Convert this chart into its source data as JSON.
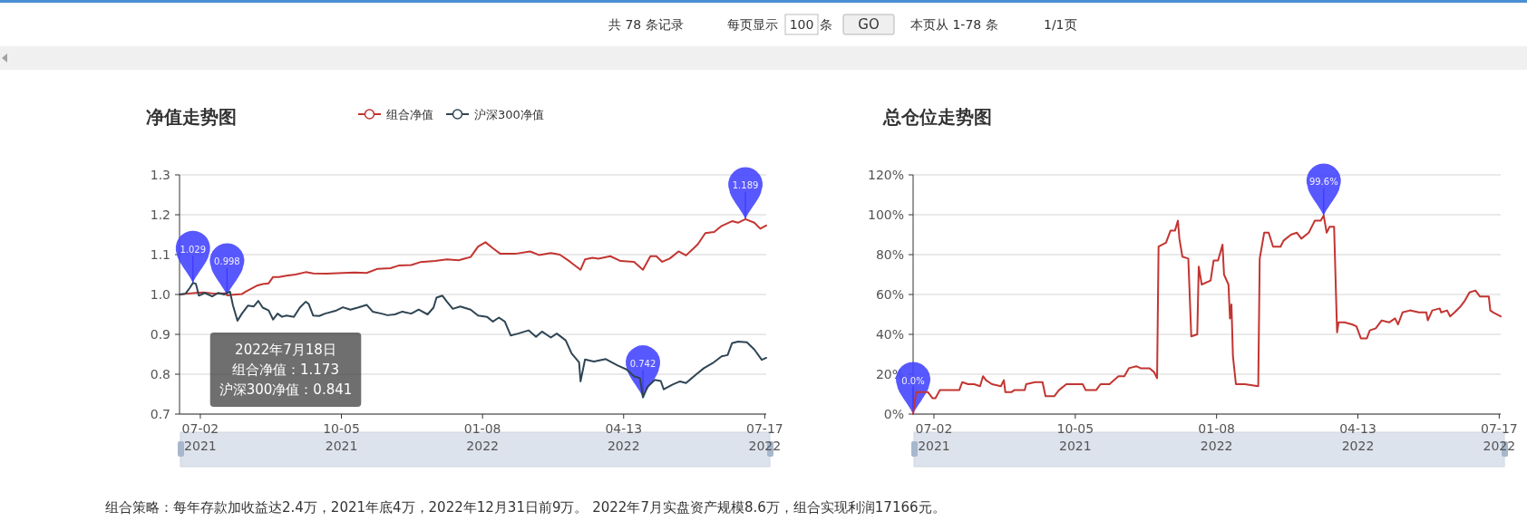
{
  "chart_data": [
    {
      "type": "other",
      "annotations": [
        "共 78 条记录",
        "每页显示",
        "100",
        "条",
        "GO",
        "本页从 1-78 条",
        "1/1页"
      ]
    },
    {
      "type": "line",
      "title": "净值走势图",
      "legend": "top",
      "grid": "y",
      "xlim": [
        "2021-06-18",
        "2022-07-18"
      ],
      "xticks": [
        {
          "value": "2021-07-02",
          "label": "07-02\n2021"
        },
        {
          "value": "2021-10-05",
          "label": "10-05\n2021"
        },
        {
          "value": "2022-01-08",
          "label": "01-08\n2022"
        },
        {
          "value": "2022-04-13",
          "label": "04-13\n2022"
        },
        {
          "value": "2022-07-17",
          "label": "07-17\n2022"
        }
      ],
      "ylim": [
        0.7,
        1.3
      ],
      "yticks": [
        0.7,
        0.8,
        0.9,
        {
          "value": 1,
          "label": "1.0"
        },
        1.1,
        1.2,
        1.3
      ],
      "series": [
        {
          "name": "组合净值",
          "color": "#c23531",
          "x": [
            "2021-06-18",
            "2021-06-23",
            "2021-06-29",
            "2021-07-04",
            "2021-07-12",
            "2021-07-19",
            "2021-07-20",
            "2021-07-26",
            "2021-07-30",
            "2021-08-01",
            "2021-08-05",
            "2021-08-09",
            "2021-08-13",
            "2021-08-17",
            "2021-08-20",
            "2021-08-24",
            "2021-08-29",
            "2021-09-04",
            "2021-09-11",
            "2021-09-16",
            "2021-09-25",
            "2021-10-06",
            "2021-10-14",
            "2021-10-22",
            "2021-10-29",
            "2021-11-07",
            "2021-11-13",
            "2021-11-21",
            "2021-11-27",
            "2021-12-07",
            "2021-12-15",
            "2021-12-23",
            "2021-12-31",
            "2022-01-05",
            "2022-01-10",
            "2022-01-15",
            "2022-01-20",
            "2022-01-30",
            "2022-02-09",
            "2022-02-15",
            "2022-02-23",
            "2022-03-01",
            "2022-03-08",
            "2022-03-15",
            "2022-03-18",
            "2022-03-23",
            "2022-03-27",
            "2022-04-04",
            "2022-04-11",
            "2022-04-20",
            "2022-04-26",
            "2022-05-01",
            "2022-05-05",
            "2022-05-09",
            "2022-05-14",
            "2022-05-20",
            "2022-05-25",
            "2022-06-02",
            "2022-06-07",
            "2022-06-13",
            "2022-06-18",
            "2022-06-25",
            "2022-06-29",
            "2022-07-04",
            "2022-07-10",
            "2022-07-14",
            "2022-07-18"
          ],
          "values": [
            1.0,
            1.002,
            1.004,
            1.005,
            1.002,
            1.003,
            0.998,
            1.0,
            1.001,
            1.006,
            1.014,
            1.022,
            1.026,
            1.028,
            1.044,
            1.044,
            1.047,
            1.05,
            1.056,
            1.053,
            1.052,
            1.054,
            1.055,
            1.054,
            1.064,
            1.066,
            1.073,
            1.074,
            1.081,
            1.084,
            1.088,
            1.086,
            1.094,
            1.12,
            1.131,
            1.116,
            1.102,
            1.102,
            1.108,
            1.099,
            1.104,
            1.1,
            1.082,
            1.062,
            1.088,
            1.092,
            1.09,
            1.096,
            1.084,
            1.082,
            1.062,
            1.096,
            1.096,
            1.082,
            1.09,
            1.108,
            1.098,
            1.126,
            1.154,
            1.157,
            1.172,
            1.184,
            1.18,
            1.189,
            1.18,
            1.165,
            1.173
          ]
        },
        {
          "name": "沪深300净值",
          "color": "#2f4554",
          "x": [
            "2021-06-18",
            "2021-06-22",
            "2021-06-25",
            "2021-06-27",
            "2021-06-29",
            "2021-07-01",
            "2021-07-05",
            "2021-07-10",
            "2021-07-14",
            "2021-07-18",
            "2021-07-22",
            "2021-07-24",
            "2021-07-27",
            "2021-07-30",
            "2021-08-03",
            "2021-08-07",
            "2021-08-10",
            "2021-08-13",
            "2021-08-17",
            "2021-08-20",
            "2021-08-23",
            "2021-08-26",
            "2021-08-29",
            "2021-09-03",
            "2021-09-07",
            "2021-09-11",
            "2021-09-13",
            "2021-09-16",
            "2021-09-20",
            "2021-09-24",
            "2021-10-01",
            "2021-10-06",
            "2021-10-11",
            "2021-10-16",
            "2021-10-22",
            "2021-10-26",
            "2021-11-01",
            "2021-11-05",
            "2021-11-10",
            "2021-11-15",
            "2021-11-21",
            "2021-11-26",
            "2021-12-02",
            "2021-12-06",
            "2021-12-08",
            "2021-12-12",
            "2021-12-15",
            "2021-12-19",
            "2021-12-24",
            "2021-12-31",
            "2022-01-05",
            "2022-01-11",
            "2022-01-15",
            "2022-01-19",
            "2022-01-23",
            "2022-01-27",
            "2022-02-01",
            "2022-02-08",
            "2022-02-13",
            "2022-02-17",
            "2022-02-23",
            "2022-02-27",
            "2022-03-05",
            "2022-03-09",
            "2022-03-14",
            "2022-03-15",
            "2022-03-18",
            "2022-03-24",
            "2022-04-01",
            "2022-04-09",
            "2022-04-15",
            "2022-04-20",
            "2022-04-24",
            "2022-04-26",
            "2022-04-29",
            "2022-05-04",
            "2022-05-08",
            "2022-05-10",
            "2022-05-16",
            "2022-05-21",
            "2022-05-25",
            "2022-06-01",
            "2022-06-06",
            "2022-06-12",
            "2022-06-18",
            "2022-06-22",
            "2022-06-25",
            "2022-06-29",
            "2022-07-05",
            "2022-07-10",
            "2022-07-15",
            "2022-07-18"
          ],
          "values": [
            1.0,
            1.002,
            1.017,
            1.029,
            1.027,
            0.997,
            1.004,
            0.995,
            1.004,
            1.0,
            1.007,
            0.972,
            0.934,
            0.952,
            0.972,
            0.97,
            0.984,
            0.967,
            0.96,
            0.937,
            0.952,
            0.944,
            0.947,
            0.944,
            0.967,
            0.982,
            0.976,
            0.947,
            0.946,
            0.952,
            0.959,
            0.968,
            0.962,
            0.967,
            0.974,
            0.957,
            0.952,
            0.948,
            0.95,
            0.957,
            0.952,
            0.962,
            0.95,
            0.967,
            0.992,
            0.997,
            0.982,
            0.964,
            0.97,
            0.962,
            0.947,
            0.944,
            0.932,
            0.942,
            0.932,
            0.897,
            0.902,
            0.91,
            0.894,
            0.907,
            0.892,
            0.902,
            0.885,
            0.852,
            0.83,
            0.782,
            0.837,
            0.832,
            0.838,
            0.822,
            0.812,
            0.795,
            0.79,
            0.742,
            0.768,
            0.786,
            0.783,
            0.762,
            0.774,
            0.782,
            0.778,
            0.8,
            0.815,
            0.828,
            0.845,
            0.848,
            0.878,
            0.882,
            0.88,
            0.862,
            0.836,
            0.841
          ]
        }
      ],
      "annotations": [
        {
          "text": "1.029",
          "x": "2021-06-27",
          "y": 1.029
        },
        {
          "text": "0.998",
          "x": "2021-07-20",
          "y": 0.998
        },
        {
          "text": "1.189",
          "x": "2022-07-04",
          "y": 1.189
        },
        {
          "text": "0.742",
          "x": "2022-04-26",
          "y": 0.742
        },
        "2022年7月18日",
        "组合净值：1.173",
        "沪深300净值：0.841"
      ]
    },
    {
      "type": "line",
      "title": "总仓位走势图",
      "grid": "y",
      "xlim": [
        "2021-06-18",
        "2022-07-18"
      ],
      "xticks": [
        {
          "value": "2021-07-02",
          "label": "07-02\n2021"
        },
        {
          "value": "2021-10-05",
          "label": "10-05\n2021"
        },
        {
          "value": "2022-01-08",
          "label": "01-08\n2022"
        },
        {
          "value": "2022-04-13",
          "label": "04-13\n2022"
        },
        {
          "value": "2022-07-17",
          "label": "07-17\n2022"
        }
      ],
      "ylim": [
        0,
        120
      ],
      "yticks": [
        {
          "value": 0,
          "label": "0%"
        },
        {
          "value": 20,
          "label": "20%"
        },
        {
          "value": 40,
          "label": "40%"
        },
        {
          "value": 60,
          "label": "60%"
        },
        {
          "value": 80,
          "label": "80%"
        },
        {
          "value": 100,
          "label": "100%"
        },
        {
          "value": 120,
          "label": "120%"
        }
      ],
      "series": [
        {
          "color": "#c23531",
          "x": [
            "2021-06-18",
            "2021-06-20",
            "2021-06-28",
            "2021-07-01",
            "2021-07-03",
            "2021-07-06",
            "2021-07-19",
            "2021-07-21",
            "2021-07-25",
            "2021-07-29",
            "2021-08-02",
            "2021-08-04",
            "2021-08-06",
            "2021-08-10",
            "2021-08-16",
            "2021-08-18",
            "2021-08-19",
            "2021-08-23",
            "2021-08-25",
            "2021-09-01",
            "2021-09-02",
            "2021-09-08",
            "2021-09-13",
            "2021-09-15",
            "2021-09-21",
            "2021-09-24",
            "2021-09-29",
            "2021-10-10",
            "2021-10-12",
            "2021-10-19",
            "2021-10-22",
            "2021-10-28",
            "2021-11-03",
            "2021-11-07",
            "2021-11-10",
            "2021-11-15",
            "2021-11-18",
            "2021-11-24",
            "2021-11-27",
            "2021-11-29",
            "2021-11-30",
            "2021-12-05",
            "2021-12-08",
            "2021-12-11",
            "2021-12-13",
            "2021-12-14",
            "2021-12-16",
            "2021-12-20",
            "2021-12-22",
            "2021-12-26",
            "2021-12-27",
            "2021-12-29",
            "2022-01-04",
            "2022-01-06",
            "2022-01-09",
            "2022-01-12",
            "2022-01-13",
            "2022-01-16",
            "2022-01-17",
            "2022-01-18",
            "2022-01-19",
            "2022-01-21",
            "2022-01-27",
            "2022-02-05",
            "2022-02-06",
            "2022-02-09",
            "2022-02-12",
            "2022-02-15",
            "2022-02-20",
            "2022-02-22",
            "2022-02-27",
            "2022-03-03",
            "2022-03-06",
            "2022-03-11",
            "2022-03-15",
            "2022-03-19",
            "2022-03-21",
            "2022-03-23",
            "2022-03-25",
            "2022-03-28",
            "2022-03-30",
            "2022-03-31",
            "2022-04-04",
            "2022-04-09",
            "2022-04-12",
            "2022-04-15",
            "2022-04-19",
            "2022-04-21",
            "2022-04-25",
            "2022-04-29",
            "2022-05-04",
            "2022-05-08",
            "2022-05-10",
            "2022-05-13",
            "2022-05-18",
            "2022-05-24",
            "2022-05-29",
            "2022-05-30",
            "2022-06-02",
            "2022-06-07",
            "2022-06-08",
            "2022-06-12",
            "2022-06-14",
            "2022-06-17",
            "2022-06-21",
            "2022-06-24",
            "2022-06-27",
            "2022-07-01",
            "2022-07-04",
            "2022-07-10",
            "2022-07-11",
            "2022-07-13",
            "2022-07-18"
          ],
          "values": [
            0,
            11,
            11,
            8,
            8,
            12,
            12,
            16,
            15,
            15,
            14,
            19,
            17,
            15,
            14,
            17,
            11,
            11,
            12,
            12,
            15,
            16,
            16,
            9,
            9,
            12,
            15,
            15,
            12,
            12,
            15,
            15,
            19,
            19,
            23,
            24,
            23,
            23,
            21,
            18,
            84,
            86,
            92,
            92,
            97,
            88,
            79,
            78,
            39,
            40,
            74,
            65,
            67,
            77,
            77,
            85,
            70,
            65,
            48,
            55,
            29,
            15,
            15,
            14,
            78,
            91,
            91,
            84,
            84,
            87,
            90,
            91,
            88,
            91,
            97,
            97,
            99.6,
            91,
            94,
            94,
            41,
            46,
            46,
            45,
            44,
            38,
            38,
            42,
            43,
            47,
            46,
            48,
            45,
            51,
            52,
            51,
            51,
            47,
            52,
            53,
            51,
            52,
            49,
            51,
            54,
            57,
            61,
            62,
            59,
            59,
            52,
            51,
            49
          ]
        }
      ],
      "annotations": [
        {
          "text": "0.0%",
          "x": "2021-06-18",
          "y": 0
        },
        {
          "text": "99.6%",
          "x": "2022-03-21",
          "y": 99.6
        }
      ]
    },
    {
      "type": "other",
      "annotations": [
        "组合策略：每年存款加收益达2.4万，2021年底4万，2022年12月31日前9万。 2022年7月实盘资产规模8.6万，组合实现利润17166元。"
      ]
    }
  ]
}
